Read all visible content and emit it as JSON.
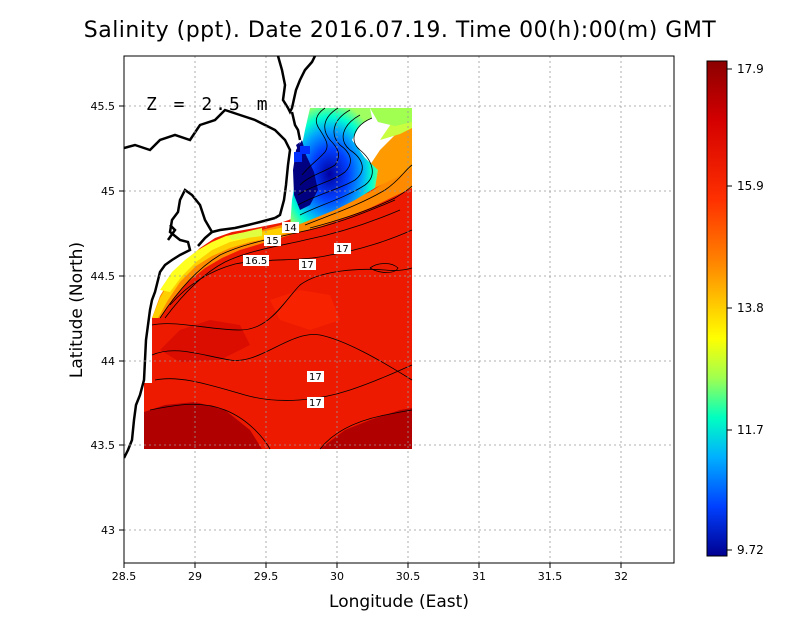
{
  "title": "Salinity (ppt). Date 2016.07.19. Time 00(h):00(m) GMT",
  "depth_label": "Z = 2.5 m",
  "x_axis": {
    "label": "Longitude (East)",
    "ticks": [
      "28.5",
      "29",
      "29.5",
      "30",
      "30.5",
      "31",
      "31.5",
      "32"
    ],
    "range": [
      28.5,
      32.4
    ]
  },
  "y_axis": {
    "label": "Latitude (North)",
    "ticks": [
      "43",
      "43.5",
      "44",
      "44.5",
      "45",
      "45.5"
    ],
    "range": [
      42.8,
      45.8
    ]
  },
  "colorbar": {
    "labels": [
      "17.9",
      "15.9",
      "13.8",
      "11.7",
      "9.72"
    ],
    "min": 9.72,
    "max": 17.9,
    "colors": [
      "#8b0000",
      "#e00000",
      "#ff5000",
      "#ffa000",
      "#ffff00",
      "#a0ff50",
      "#00ffd0",
      "#00b0ff",
      "#0050ff",
      "#0000a0"
    ]
  },
  "contour_labels": [
    "14",
    "15",
    "16.5",
    "17",
    "17",
    "17",
    "17"
  ],
  "grid": true
}
